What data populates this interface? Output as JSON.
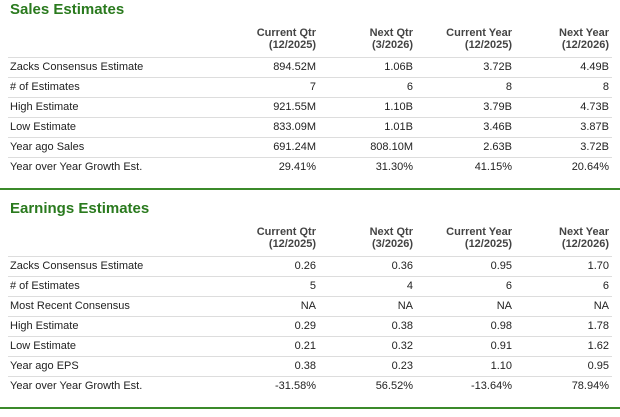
{
  "sections": [
    {
      "title": "Sales Estimates",
      "headers": [
        [
          "Current Qtr",
          "(12/2025)"
        ],
        [
          "Next Qtr",
          "(3/2026)"
        ],
        [
          "Current Year",
          "(12/2025)"
        ],
        [
          "Next Year",
          "(12/2026)"
        ]
      ],
      "rows": [
        [
          "Zacks Consensus Estimate",
          "894.52M",
          "1.06B",
          "3.72B",
          "4.49B"
        ],
        [
          "# of Estimates",
          "7",
          "6",
          "8",
          "8"
        ],
        [
          "High Estimate",
          "921.55M",
          "1.10B",
          "3.79B",
          "4.73B"
        ],
        [
          "Low Estimate",
          "833.09M",
          "1.01B",
          "3.46B",
          "3.87B"
        ],
        [
          "Year ago Sales",
          "691.24M",
          "808.10M",
          "2.63B",
          "3.72B"
        ],
        [
          "Year over Year Growth Est.",
          "29.41%",
          "31.30%",
          "41.15%",
          "20.64%"
        ]
      ]
    },
    {
      "title": "Earnings Estimates",
      "headers": [
        [
          "Current Qtr",
          "(12/2025)"
        ],
        [
          "Next Qtr",
          "(3/2026)"
        ],
        [
          "Current Year",
          "(12/2025)"
        ],
        [
          "Next Year",
          "(12/2026)"
        ]
      ],
      "rows": [
        [
          "Zacks Consensus Estimate",
          "0.26",
          "0.36",
          "0.95",
          "1.70"
        ],
        [
          "# of Estimates",
          "5",
          "4",
          "6",
          "6"
        ],
        [
          "Most Recent Consensus",
          "NA",
          "NA",
          "NA",
          "NA"
        ],
        [
          "High Estimate",
          "0.29",
          "0.38",
          "0.98",
          "1.78"
        ],
        [
          "Low Estimate",
          "0.21",
          "0.32",
          "0.91",
          "1.62"
        ],
        [
          "Year ago EPS",
          "0.38",
          "0.23",
          "1.10",
          "0.95"
        ],
        [
          "Year over Year Growth Est.",
          "-31.58%",
          "56.52%",
          "-13.64%",
          "78.94%"
        ]
      ]
    }
  ]
}
